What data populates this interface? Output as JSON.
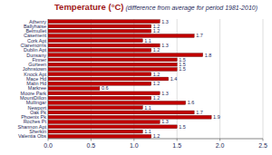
{
  "chart_data": {
    "type": "bar",
    "orientation": "horizontal",
    "title": "Temperature (°C)",
    "subtitle": "(difference from average for period 1981-2010)",
    "categories": [
      "Athenry",
      "Ballyhaise",
      "Belmullet",
      "Casement",
      "Cork Apt",
      "Claremorris",
      "Dublin Apt",
      "Dunsany",
      "Finner",
      "Gurteen",
      "Johnstown",
      "Knock Apt",
      "Mace Hd",
      "Malin Hd",
      "Markree",
      "Moore Park",
      "MountDillon",
      "Mullingar",
      "Newport",
      "Oak Pk",
      "Phoenix Pk",
      "Roches Pt",
      "Shannon Apt",
      "Sherkin",
      "Valentia Obs"
    ],
    "values": [
      1.3,
      1.2,
      1.2,
      1.7,
      1.1,
      1.3,
      1.2,
      1.8,
      1.5,
      1.5,
      1.5,
      1.2,
      1.4,
      1.2,
      0.6,
      1.3,
      1.2,
      1.6,
      1.1,
      1.7,
      1.9,
      1.3,
      1.5,
      1.1,
      1.2
    ],
    "color": "#c00000",
    "xlim": [
      0,
      2.5
    ],
    "xticks": [
      {
        "value": 0,
        "label": "0.0"
      },
      0.5,
      {
        "value": 1,
        "label": "1.0"
      },
      1.5,
      {
        "value": 2,
        "label": "2.0"
      },
      2.5
    ],
    "grid": true,
    "data_labels": true
  }
}
